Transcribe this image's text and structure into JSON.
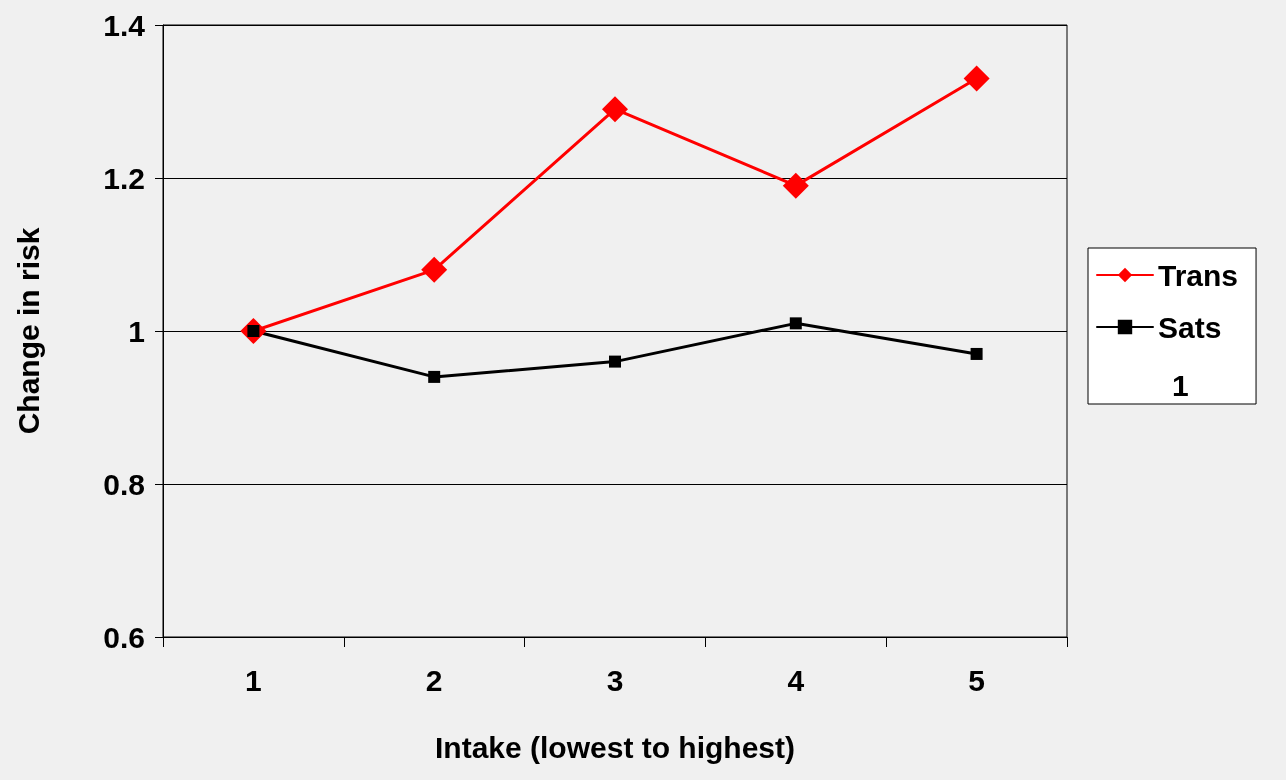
{
  "chart_data": {
    "type": "line",
    "xlabel": "Intake (lowest to highest)",
    "ylabel": "Change in risk",
    "categories": [
      "1",
      "2",
      "3",
      "4",
      "5"
    ],
    "series": [
      {
        "name": "Trans",
        "color": "#ff0000",
        "marker": "diamond",
        "values": [
          1.0,
          1.08,
          1.29,
          1.19,
          1.33
        ]
      },
      {
        "name": "Sats",
        "color": "#000000",
        "marker": "square",
        "values": [
          1.0,
          0.94,
          0.96,
          1.01,
          0.97
        ]
      }
    ],
    "annotations": [
      "1"
    ],
    "ylim": [
      0.6,
      1.4
    ],
    "yticks": [
      0.6,
      0.8,
      1,
      1.2,
      1.4
    ],
    "grid": "y",
    "legend": "right",
    "line_style": "solid"
  }
}
